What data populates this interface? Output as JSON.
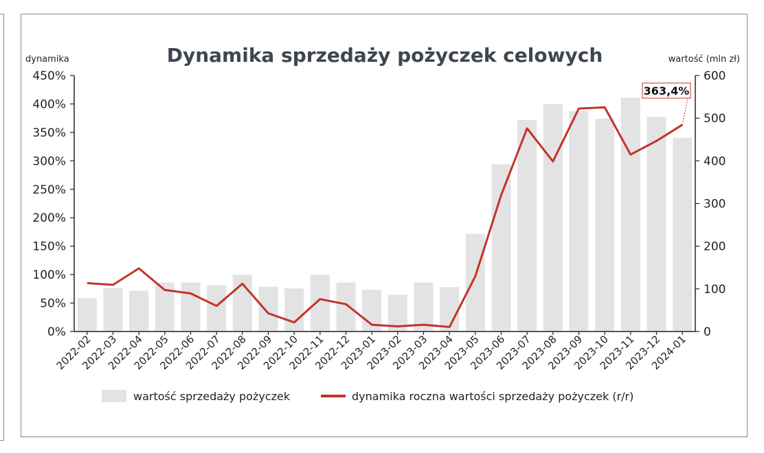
{
  "chart_data": {
    "type": "bar+line",
    "title": "Dynamika sprzedaży pożyczek celowych",
    "ylabel_left": "dynamika",
    "ylabel_right": "wartość (mln zł)",
    "ylim_left": [
      0,
      450
    ],
    "ylim_right": [
      0,
      600
    ],
    "left_ticks": [
      "0%",
      "50%",
      "100%",
      "150%",
      "200%",
      "250%",
      "300%",
      "350%",
      "400%",
      "450%"
    ],
    "right_ticks": [
      "0",
      "100",
      "200",
      "300",
      "400",
      "500",
      "600"
    ],
    "categories": [
      "2022-02",
      "2022-03",
      "2022-04",
      "2022-05",
      "2022-06",
      "2022-07",
      "2022-08",
      "2022-09",
      "2022-10",
      "2022-11",
      "2022-12",
      "2023-01",
      "2023-02",
      "2023-03",
      "2023-04",
      "2023-05",
      "2023-06",
      "2023-07",
      "2023-08",
      "2023-09",
      "2023-10",
      "2023-11",
      "2023-12",
      "2024-01"
    ],
    "series": [
      {
        "name": "wartość sprzedaży pożyczek",
        "type": "bar",
        "axis": "right",
        "color": "#e3e3e3",
        "values": [
          78,
          102,
          96,
          115,
          115,
          108,
          133,
          105,
          101,
          133,
          115,
          98,
          86,
          115,
          104,
          229,
          392,
          496,
          533,
          517,
          499,
          548,
          503,
          454
        ]
      },
      {
        "name": "dynamika roczna wartości sprzedaży pożyczek (r/r)",
        "type": "line",
        "axis": "left",
        "color": "#c0332b",
        "values": [
          85,
          82,
          111,
          73,
          67,
          45,
          84,
          32,
          16,
          57,
          48,
          12,
          9,
          12,
          8,
          97,
          240,
          357,
          299,
          392,
          394,
          311,
          335,
          363.4
        ]
      }
    ],
    "annotation": {
      "text": "363,4%",
      "category": "2024-01"
    },
    "grid": false,
    "legend": "bottom"
  }
}
